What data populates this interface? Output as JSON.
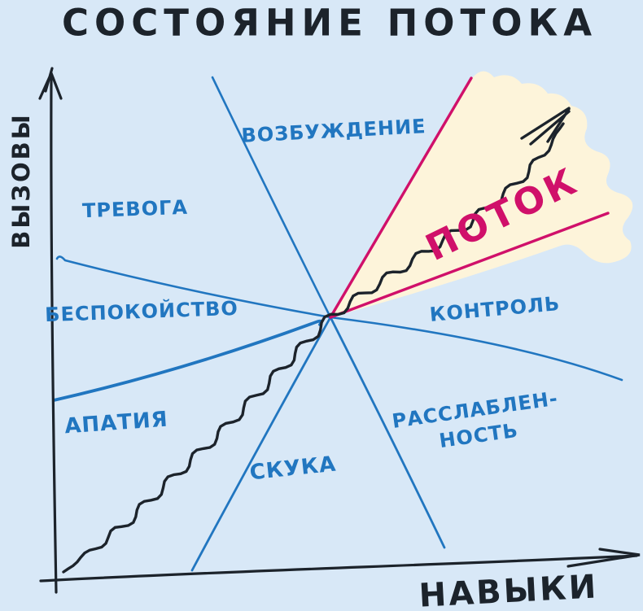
{
  "title": "СОСТОЯНИЕ ПОТОКА",
  "axes": {
    "y_label": "ВЫЗОВЫ",
    "x_label": "НАВЫКИ"
  },
  "zones": {
    "excitement": "ВОЗБУЖДЕНИЕ",
    "anxiety": "ТРЕВОГА",
    "worry": "БЕСПОКОЙСТВО",
    "apathy": "АПАТИЯ",
    "boredom": "СКУКА",
    "control": "КОНТРОЛЬ",
    "relaxation": {
      "line1": "РАССЛАБЛЕН-",
      "line2": "НОСТЬ"
    },
    "flow": "ПОТОК"
  },
  "colors": {
    "background": "#d8e8f7",
    "zone_color": "#2176c0",
    "flow_accent": "#d0106a",
    "flow_fill": "#fdf4da",
    "ink": "#1c232b"
  }
}
